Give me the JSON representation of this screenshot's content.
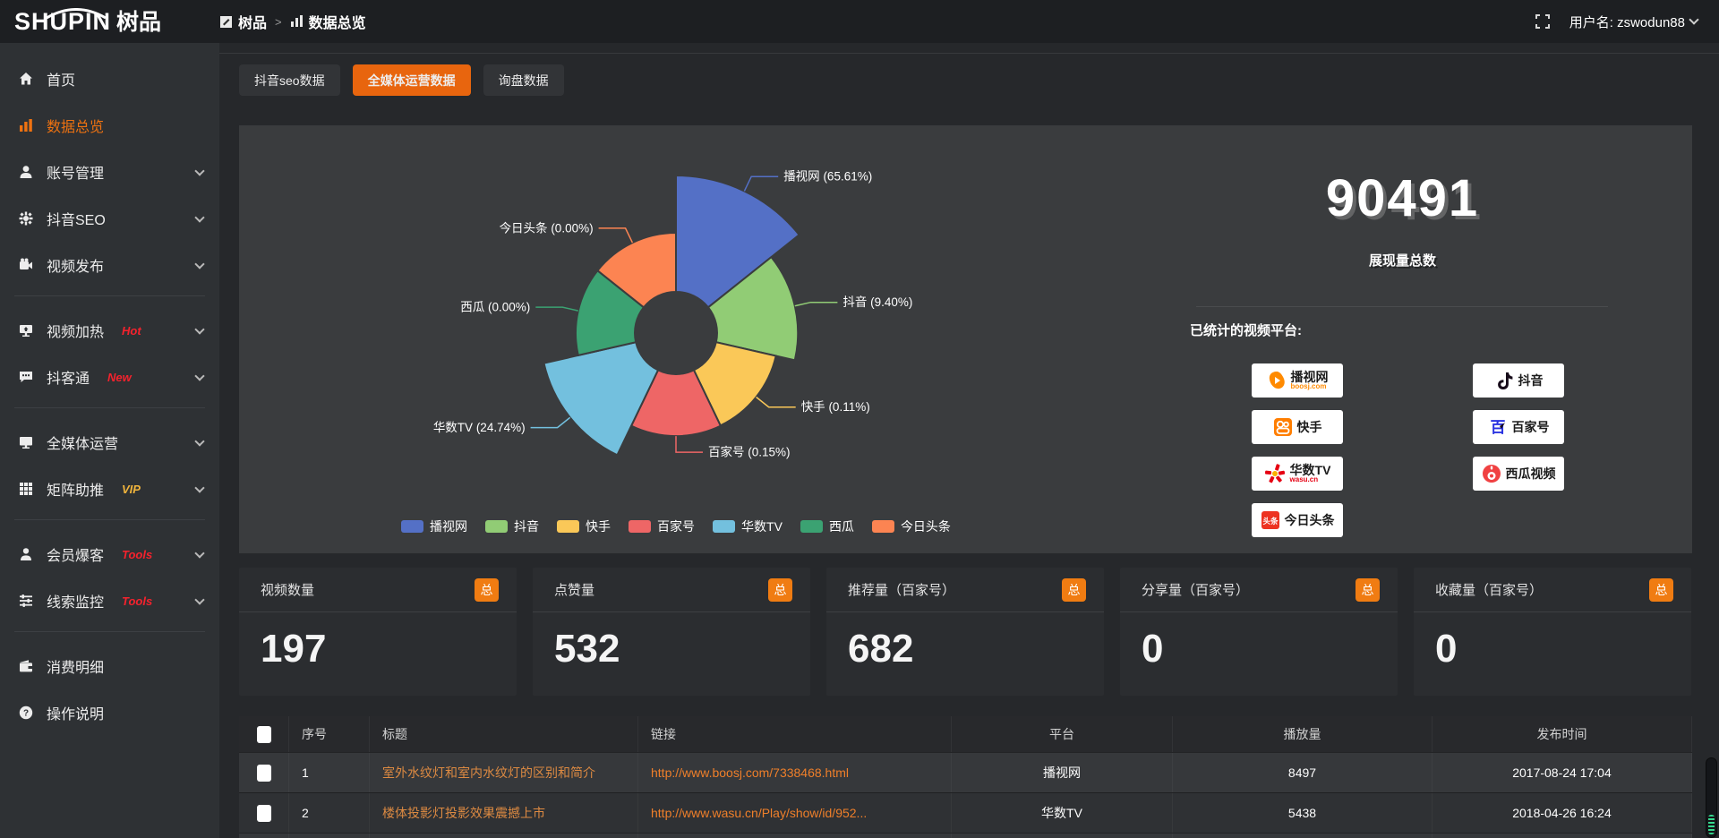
{
  "topbar": {
    "logo_en": "SHUPIN",
    "logo_cn": "树品",
    "breadcrumb": {
      "0": "树品",
      "1": "数据总览"
    },
    "username": "用户名: zswodun88"
  },
  "sidebar": {
    "items": [
      {
        "label": "首页",
        "icon": "home-icon"
      },
      {
        "label": "数据总览",
        "icon": "chart-icon",
        "active": true
      },
      {
        "label": "账号管理",
        "icon": "user-icon",
        "chevron": true
      },
      {
        "label": "抖音SEO",
        "icon": "gear-icon",
        "chevron": true
      },
      {
        "label": "视频发布",
        "icon": "video-icon",
        "chevron": true
      },
      {
        "divider": true
      },
      {
        "label": "视频加热",
        "icon": "heat-icon",
        "tag": "Hot",
        "tag_color": "#f5222d",
        "chevron": true
      },
      {
        "label": "抖客通",
        "icon": "chat-icon",
        "tag": "New",
        "tag_color": "#f5222d",
        "chevron": true
      },
      {
        "divider": true
      },
      {
        "label": "全媒体运营",
        "icon": "monitor-icon",
        "chevron": true
      },
      {
        "label": "矩阵助推",
        "icon": "grid-icon",
        "tag": "VIP",
        "tag_color": "#f0b43c",
        "chevron": true
      },
      {
        "divider": true
      },
      {
        "label": "会员爆客",
        "icon": "person-icon",
        "tag": "Tools",
        "tag_color": "#f5222d",
        "chevron": true
      },
      {
        "label": "线索监控",
        "icon": "sliders-icon",
        "tag": "Tools",
        "tag_color": "#f5222d",
        "chevron": true
      },
      {
        "divider": true
      },
      {
        "label": "消费明细",
        "icon": "wallet-icon"
      },
      {
        "label": "操作说明",
        "icon": "help-icon"
      }
    ]
  },
  "tabs": [
    {
      "label": "抖音seo数据",
      "active": false
    },
    {
      "label": "全媒体运营数据",
      "active": true
    },
    {
      "label": "询盘数据",
      "active": false
    }
  ],
  "chart_data": {
    "type": "pie",
    "variant": "rose-donut",
    "legend_position": "bottom",
    "items": [
      {
        "name": "播视网",
        "value": 65.61,
        "label": "播视网 (65.61%)",
        "color": "#5470c6"
      },
      {
        "name": "抖音",
        "value": 9.4,
        "label": "抖音 (9.40%)",
        "color": "#91cc75"
      },
      {
        "name": "快手",
        "value": 0.11,
        "label": "快手 (0.11%)",
        "color": "#fac858"
      },
      {
        "name": "百家号",
        "value": 0.15,
        "label": "百家号 (0.15%)",
        "color": "#ee6666"
      },
      {
        "name": "华数TV",
        "value": 24.74,
        "label": "华数TV (24.74%)",
        "color": "#73c0de"
      },
      {
        "name": "西瓜",
        "value": 0.0,
        "label": "西瓜 (0.00%)",
        "color": "#3ba272"
      },
      {
        "name": "今日头条",
        "value": 0.0,
        "label": "今日头条 (0.00%)",
        "color": "#fc8452"
      }
    ],
    "total_stat": {
      "value": "90491",
      "label": "展现量总数"
    }
  },
  "platforms": {
    "heading": "已统计的视频平台:",
    "items": [
      {
        "name": "播视网",
        "sub": "boosj.com",
        "icon": "boosj-logo",
        "icon_color": "#ff8a00",
        "col": 0,
        "row": 0
      },
      {
        "name": "快手",
        "sub": "",
        "icon": "kuaishou-logo",
        "icon_color": "#ff7e00",
        "col": 0,
        "row": 1
      },
      {
        "name": "华数TV",
        "sub": "wasu.cn",
        "icon": "wasu-logo",
        "icon_color": "#e60012",
        "col": 0,
        "row": 2
      },
      {
        "name": "今日头条",
        "sub": "头条",
        "icon": "toutiao-logo",
        "icon_color": "#ed3321",
        "col": 0,
        "row": 3
      },
      {
        "name": "抖音",
        "sub": "",
        "icon": "douyin-logo",
        "icon_color": "#170b1a",
        "col": 1,
        "row": 0
      },
      {
        "name": "百家号",
        "sub": "百",
        "icon": "baijia-logo",
        "icon_color": "#2932e1",
        "col": 1,
        "row": 1
      },
      {
        "name": "西瓜视频",
        "sub": "",
        "icon": "xigua-logo",
        "icon_color": "#f04142",
        "col": 1,
        "row": 2
      }
    ]
  },
  "stat_cards": [
    {
      "title": "视频数量",
      "badge": "总",
      "value": "197"
    },
    {
      "title": "点赞量",
      "badge": "总",
      "value": "532"
    },
    {
      "title": "推荐量（百家号）",
      "badge": "总",
      "value": "682"
    },
    {
      "title": "分享量（百家号）",
      "badge": "总",
      "value": "0"
    },
    {
      "title": "收藏量（百家号）",
      "badge": "总",
      "value": "0"
    }
  ],
  "table": {
    "headers": [
      "序号",
      "标题",
      "链接",
      "平台",
      "播放量",
      "发布时间"
    ],
    "rows": [
      {
        "no": "1",
        "title": "室外水纹灯和室内水纹灯的区别和简介",
        "link": "http://www.boosj.com/7338468.html",
        "platform": "播视网",
        "plays": "8497",
        "time": "2017-08-24 17:04"
      },
      {
        "no": "2",
        "title": "楼体投影灯投影效果震撼上市",
        "link": "http://www.wasu.cn/Play/show/id/952...",
        "platform": "华数TV",
        "plays": "5438",
        "time": "2018-04-26 16:24"
      },
      {
        "no": "",
        "title": "",
        "link": "",
        "platform": "",
        "plays": "",
        "time": ""
      }
    ]
  },
  "colors": {
    "accent_orange": "#e8650e",
    "badge_orange": "#f07c12",
    "panel_bg": "#3a3c3e",
    "page_bg": "#26282b"
  }
}
